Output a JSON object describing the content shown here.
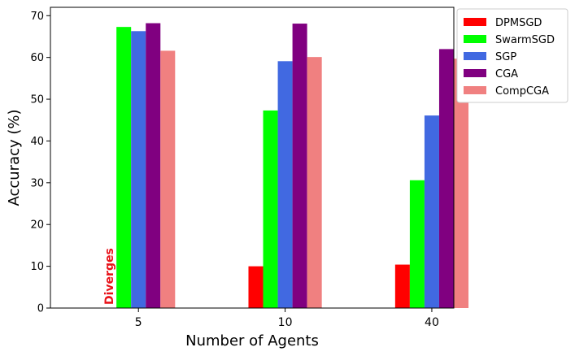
{
  "chart_data": {
    "type": "bar",
    "categories": [
      "5",
      "10",
      "40"
    ],
    "series": [
      {
        "name": "DPMSGD",
        "color": "#ff0000",
        "values": [
          null,
          10.0,
          10.4
        ]
      },
      {
        "name": "SwarmSGD",
        "color": "#00ff00",
        "values": [
          67.3,
          47.3,
          30.6
        ]
      },
      {
        "name": "SGP",
        "color": "#4169e1",
        "values": [
          66.3,
          59.1,
          46.1
        ]
      },
      {
        "name": "CGA",
        "color": "#800080",
        "values": [
          68.2,
          68.1,
          62.0
        ]
      },
      {
        "name": "CompCGA",
        "color": "#f08080",
        "values": [
          61.6,
          60.1,
          59.7
        ]
      }
    ],
    "xlabel": "Number of Agents",
    "ylabel": "Accuracy (%)",
    "ylim": [
      0,
      72
    ],
    "yticks": [
      0,
      10,
      20,
      30,
      40,
      50,
      60,
      70
    ],
    "legend_position": "outside-top-right",
    "grid": false,
    "annotations": [
      {
        "text": "Diverges",
        "category": "5",
        "series": "DPMSGD",
        "color": "#e8131a",
        "rotation": "vertical"
      }
    ]
  }
}
